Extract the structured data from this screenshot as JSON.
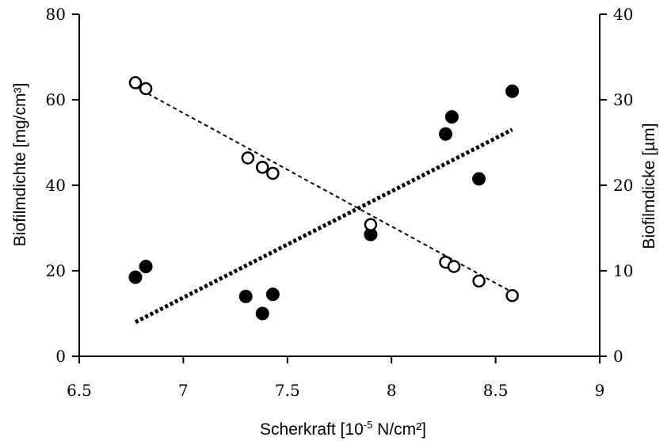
{
  "chart_data": {
    "type": "scatter",
    "title": "",
    "xlabel": "Scherkraft [10",
    "xlabel_sup": "-5",
    "xlabel_suffix": " N/cm²]",
    "ylabel_left": "Biofilmdichte [mg/cm³]",
    "ylabel_right": "Biofilmdicke [µm]",
    "xlim": [
      6.5,
      9
    ],
    "ylim_left": [
      0,
      80
    ],
    "ylim_right": [
      0,
      40
    ],
    "x_ticks": [
      6.5,
      7,
      7.5,
      8,
      8.5,
      9
    ],
    "x_tick_labels": [
      "6.5",
      "7",
      "7.5",
      "8",
      "8.5",
      "9"
    ],
    "y_left_ticks": [
      0,
      20,
      40,
      60,
      80
    ],
    "y_left_tick_labels": [
      "0",
      "20",
      "40",
      "60",
      "80"
    ],
    "y_right_ticks": [
      0,
      10,
      20,
      30,
      40
    ],
    "y_right_tick_labels": [
      "0",
      "10",
      "20",
      "30",
      "40"
    ],
    "grid": false,
    "series": [
      {
        "marker": "filled-circle",
        "axis": "left",
        "color": "#000000",
        "points": [
          {
            "x": 6.77,
            "y": 18.5
          },
          {
            "x": 6.82,
            "y": 21
          },
          {
            "x": 7.3,
            "y": 14
          },
          {
            "x": 7.38,
            "y": 10
          },
          {
            "x": 7.43,
            "y": 14.5
          },
          {
            "x": 7.9,
            "y": 28.5
          },
          {
            "x": 8.26,
            "y": 52
          },
          {
            "x": 8.29,
            "y": 56
          },
          {
            "x": 8.42,
            "y": 41.5
          },
          {
            "x": 8.58,
            "y": 62
          }
        ],
        "trendline": {
          "style": "thick-dotted",
          "x": [
            6.77,
            8.58
          ],
          "y": [
            8,
            53
          ]
        }
      },
      {
        "marker": "open-circle",
        "axis": "right",
        "color": "#000000",
        "points": [
          {
            "x": 6.77,
            "y": 32
          },
          {
            "x": 6.82,
            "y": 31.3
          },
          {
            "x": 7.31,
            "y": 23.2
          },
          {
            "x": 7.38,
            "y": 22.1
          },
          {
            "x": 7.43,
            "y": 21.4
          },
          {
            "x": 7.9,
            "y": 15.4
          },
          {
            "x": 8.26,
            "y": 11
          },
          {
            "x": 8.3,
            "y": 10.5
          },
          {
            "x": 8.42,
            "y": 8.8
          },
          {
            "x": 8.58,
            "y": 7.1
          }
        ],
        "trendline": {
          "style": "thin-dashed",
          "x": [
            6.77,
            8.58
          ],
          "y": [
            31.5,
            7.5
          ]
        }
      }
    ]
  }
}
